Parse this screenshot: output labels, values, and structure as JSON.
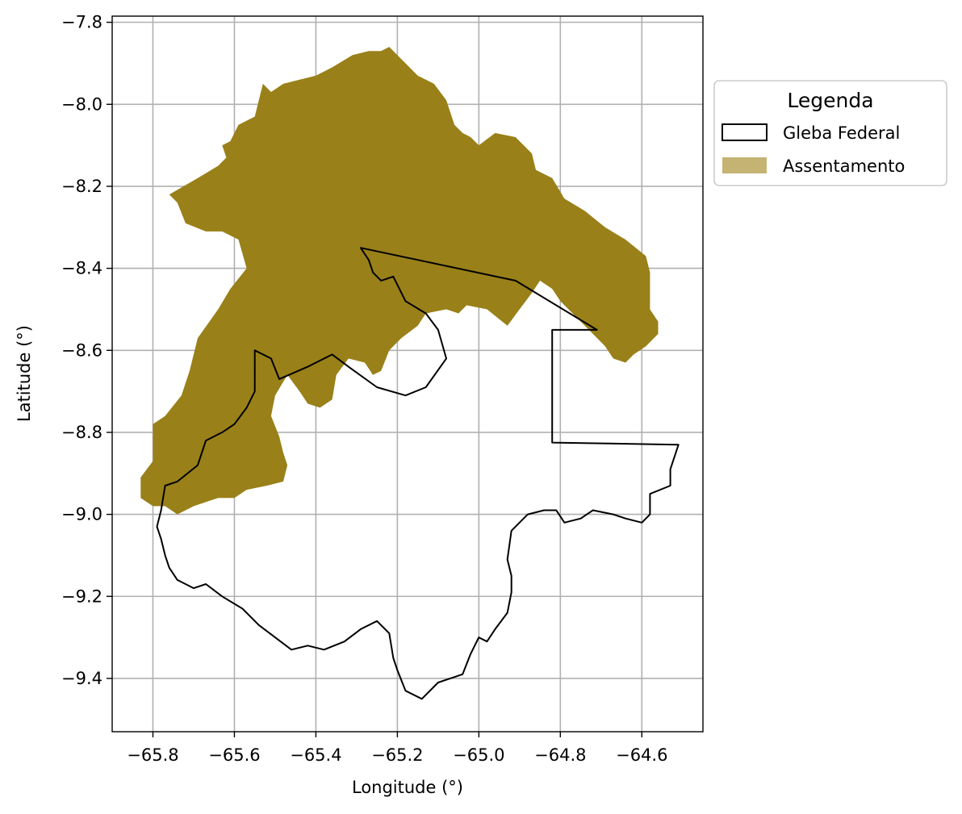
{
  "chart_data": {
    "type": "map",
    "xlabel": "Longitude (°)",
    "ylabel": "Latitude (°)",
    "xlim": [
      -65.9,
      -64.45
    ],
    "ylim": [
      -9.53,
      -7.785
    ],
    "x_ticks": [
      -65.8,
      -65.6,
      -65.4,
      -65.2,
      -65.0,
      -64.8,
      -64.6
    ],
    "x_tick_labels": [
      "−65.8",
      "−65.6",
      "−65.4",
      "−65.2",
      "−65.0",
      "−64.8",
      "−64.6"
    ],
    "y_ticks": [
      -7.8,
      -8.0,
      -8.2,
      -8.4,
      -8.6,
      -8.8,
      -9.0,
      -9.2,
      -9.4
    ],
    "y_tick_labels": [
      "−7.8",
      "−8.0",
      "−8.2",
      "−8.4",
      "−8.6",
      "−8.8",
      "−9.0",
      "−9.2",
      "−9.4"
    ],
    "grid": true,
    "legend": {
      "title": "Legenda",
      "placement": "outside-right-top",
      "entries": [
        {
          "label": "Gleba Federal",
          "style": "outline",
          "color": "#000000"
        },
        {
          "label": "Assentamento",
          "style": "fill",
          "color": "#c4b372"
        }
      ]
    },
    "layers": [
      {
        "name": "Assentamento",
        "style": "fill",
        "color": "#998019",
        "coords": [
          [
            -65.76,
            -8.22
          ],
          [
            -65.69,
            -8.18
          ],
          [
            -65.64,
            -8.15
          ],
          [
            -65.62,
            -8.13
          ],
          [
            -65.63,
            -8.1
          ],
          [
            -65.61,
            -8.09
          ],
          [
            -65.59,
            -8.05
          ],
          [
            -65.55,
            -8.03
          ],
          [
            -65.54,
            -7.99
          ],
          [
            -65.53,
            -7.95
          ],
          [
            -65.51,
            -7.97
          ],
          [
            -65.48,
            -7.95
          ],
          [
            -65.44,
            -7.94
          ],
          [
            -65.4,
            -7.93
          ],
          [
            -65.36,
            -7.91
          ],
          [
            -65.31,
            -7.88
          ],
          [
            -65.27,
            -7.87
          ],
          [
            -65.24,
            -7.87
          ],
          [
            -65.22,
            -7.86
          ],
          [
            -65.19,
            -7.89
          ],
          [
            -65.15,
            -7.93
          ],
          [
            -65.11,
            -7.95
          ],
          [
            -65.08,
            -7.99
          ],
          [
            -65.06,
            -8.05
          ],
          [
            -65.04,
            -8.07
          ],
          [
            -65.02,
            -8.08
          ],
          [
            -65.0,
            -8.1
          ],
          [
            -64.96,
            -8.07
          ],
          [
            -64.91,
            -8.08
          ],
          [
            -64.87,
            -8.12
          ],
          [
            -64.86,
            -8.16
          ],
          [
            -64.82,
            -8.18
          ],
          [
            -64.79,
            -8.23
          ],
          [
            -64.74,
            -8.26
          ],
          [
            -64.69,
            -8.3
          ],
          [
            -64.64,
            -8.33
          ],
          [
            -64.59,
            -8.37
          ],
          [
            -64.58,
            -8.41
          ],
          [
            -64.58,
            -8.46
          ],
          [
            -64.58,
            -8.5
          ],
          [
            -64.56,
            -8.53
          ],
          [
            -64.56,
            -8.56
          ],
          [
            -64.59,
            -8.59
          ],
          [
            -64.62,
            -8.61
          ],
          [
            -64.64,
            -8.63
          ],
          [
            -64.67,
            -8.62
          ],
          [
            -64.69,
            -8.59
          ],
          [
            -64.72,
            -8.56
          ],
          [
            -64.74,
            -8.54
          ],
          [
            -64.77,
            -8.51
          ],
          [
            -64.8,
            -8.48
          ],
          [
            -64.82,
            -8.45
          ],
          [
            -64.85,
            -8.43
          ],
          [
            -64.87,
            -8.46
          ],
          [
            -64.9,
            -8.5
          ],
          [
            -64.93,
            -8.54
          ],
          [
            -64.98,
            -8.5
          ],
          [
            -65.03,
            -8.49
          ],
          [
            -65.05,
            -8.51
          ],
          [
            -65.08,
            -8.5
          ],
          [
            -65.13,
            -8.51
          ],
          [
            -65.15,
            -8.54
          ],
          [
            -65.19,
            -8.57
          ],
          [
            -65.22,
            -8.6
          ],
          [
            -65.24,
            -8.65
          ],
          [
            -65.26,
            -8.66
          ],
          [
            -65.28,
            -8.63
          ],
          [
            -65.32,
            -8.62
          ],
          [
            -65.35,
            -8.66
          ],
          [
            -65.36,
            -8.72
          ],
          [
            -65.39,
            -8.74
          ],
          [
            -65.42,
            -8.73
          ],
          [
            -65.44,
            -8.7
          ],
          [
            -65.47,
            -8.66
          ],
          [
            -65.5,
            -8.71
          ],
          [
            -65.51,
            -8.76
          ],
          [
            -65.49,
            -8.81
          ],
          [
            -65.48,
            -8.85
          ],
          [
            -65.47,
            -8.88
          ],
          [
            -65.48,
            -8.92
          ],
          [
            -65.52,
            -8.93
          ],
          [
            -65.57,
            -8.94
          ],
          [
            -65.6,
            -8.96
          ],
          [
            -65.64,
            -8.96
          ],
          [
            -65.67,
            -8.97
          ],
          [
            -65.7,
            -8.98
          ],
          [
            -65.74,
            -9.0
          ],
          [
            -65.77,
            -8.98
          ],
          [
            -65.8,
            -8.98
          ],
          [
            -65.83,
            -8.96
          ],
          [
            -65.83,
            -8.91
          ],
          [
            -65.8,
            -8.87
          ],
          [
            -65.8,
            -8.78
          ],
          [
            -65.77,
            -8.76
          ],
          [
            -65.73,
            -8.71
          ],
          [
            -65.71,
            -8.65
          ],
          [
            -65.69,
            -8.57
          ],
          [
            -65.64,
            -8.5
          ],
          [
            -65.61,
            -8.45
          ],
          [
            -65.57,
            -8.4
          ],
          [
            -65.59,
            -8.33
          ],
          [
            -65.63,
            -8.31
          ],
          [
            -65.67,
            -8.31
          ],
          [
            -65.72,
            -8.29
          ],
          [
            -65.74,
            -8.24
          ],
          [
            -65.76,
            -8.22
          ]
        ]
      },
      {
        "name": "Gleba Federal",
        "style": "outline",
        "color": "#000000",
        "coords": [
          [
            -65.29,
            -8.35
          ],
          [
            -64.91,
            -8.43
          ],
          [
            -64.71,
            -8.55
          ],
          [
            -64.82,
            -8.55
          ],
          [
            -64.82,
            -8.825
          ],
          [
            -64.51,
            -8.83
          ],
          [
            -64.53,
            -8.89
          ],
          [
            -64.53,
            -8.93
          ],
          [
            -64.58,
            -8.95
          ],
          [
            -64.58,
            -9.0
          ],
          [
            -64.6,
            -9.02
          ],
          [
            -64.64,
            -9.01
          ],
          [
            -64.67,
            -9.0
          ],
          [
            -64.72,
            -8.99
          ],
          [
            -64.75,
            -9.01
          ],
          [
            -64.79,
            -9.02
          ],
          [
            -64.81,
            -8.99
          ],
          [
            -64.84,
            -8.99
          ],
          [
            -64.88,
            -9.0
          ],
          [
            -64.92,
            -9.04
          ],
          [
            -64.93,
            -9.11
          ],
          [
            -64.92,
            -9.15
          ],
          [
            -64.92,
            -9.19
          ],
          [
            -64.93,
            -9.24
          ],
          [
            -64.96,
            -9.28
          ],
          [
            -64.98,
            -9.31
          ],
          [
            -65.0,
            -9.3
          ],
          [
            -65.02,
            -9.34
          ],
          [
            -65.04,
            -9.39
          ],
          [
            -65.07,
            -9.4
          ],
          [
            -65.1,
            -9.41
          ],
          [
            -65.14,
            -9.45
          ],
          [
            -65.18,
            -9.43
          ],
          [
            -65.2,
            -9.38
          ],
          [
            -65.21,
            -9.35
          ],
          [
            -65.22,
            -9.29
          ],
          [
            -65.25,
            -9.26
          ],
          [
            -65.29,
            -9.28
          ],
          [
            -65.33,
            -9.31
          ],
          [
            -65.38,
            -9.33
          ],
          [
            -65.42,
            -9.32
          ],
          [
            -65.46,
            -9.33
          ],
          [
            -65.5,
            -9.3
          ],
          [
            -65.54,
            -9.27
          ],
          [
            -65.58,
            -9.23
          ],
          [
            -65.63,
            -9.2
          ],
          [
            -65.67,
            -9.17
          ],
          [
            -65.7,
            -9.18
          ],
          [
            -65.74,
            -9.16
          ],
          [
            -65.76,
            -9.13
          ],
          [
            -65.77,
            -9.1
          ],
          [
            -65.78,
            -9.06
          ],
          [
            -65.79,
            -9.03
          ],
          [
            -65.78,
            -8.99
          ],
          [
            -65.77,
            -8.93
          ],
          [
            -65.74,
            -8.92
          ],
          [
            -65.69,
            -8.88
          ],
          [
            -65.67,
            -8.82
          ],
          [
            -65.63,
            -8.8
          ],
          [
            -65.6,
            -8.78
          ],
          [
            -65.57,
            -8.74
          ],
          [
            -65.55,
            -8.7
          ],
          [
            -65.55,
            -8.64
          ],
          [
            -65.55,
            -8.6
          ],
          [
            -65.51,
            -8.62
          ],
          [
            -65.49,
            -8.67
          ],
          [
            -65.42,
            -8.64
          ],
          [
            -65.36,
            -8.61
          ],
          [
            -65.32,
            -8.64
          ],
          [
            -65.25,
            -8.69
          ],
          [
            -65.18,
            -8.71
          ],
          [
            -65.13,
            -8.69
          ],
          [
            -65.08,
            -8.62
          ],
          [
            -65.1,
            -8.55
          ],
          [
            -65.13,
            -8.51
          ],
          [
            -65.18,
            -8.48
          ],
          [
            -65.21,
            -8.42
          ],
          [
            -65.24,
            -8.43
          ],
          [
            -65.26,
            -8.41
          ],
          [
            -65.27,
            -8.38
          ],
          [
            -65.29,
            -8.35
          ]
        ]
      }
    ]
  }
}
